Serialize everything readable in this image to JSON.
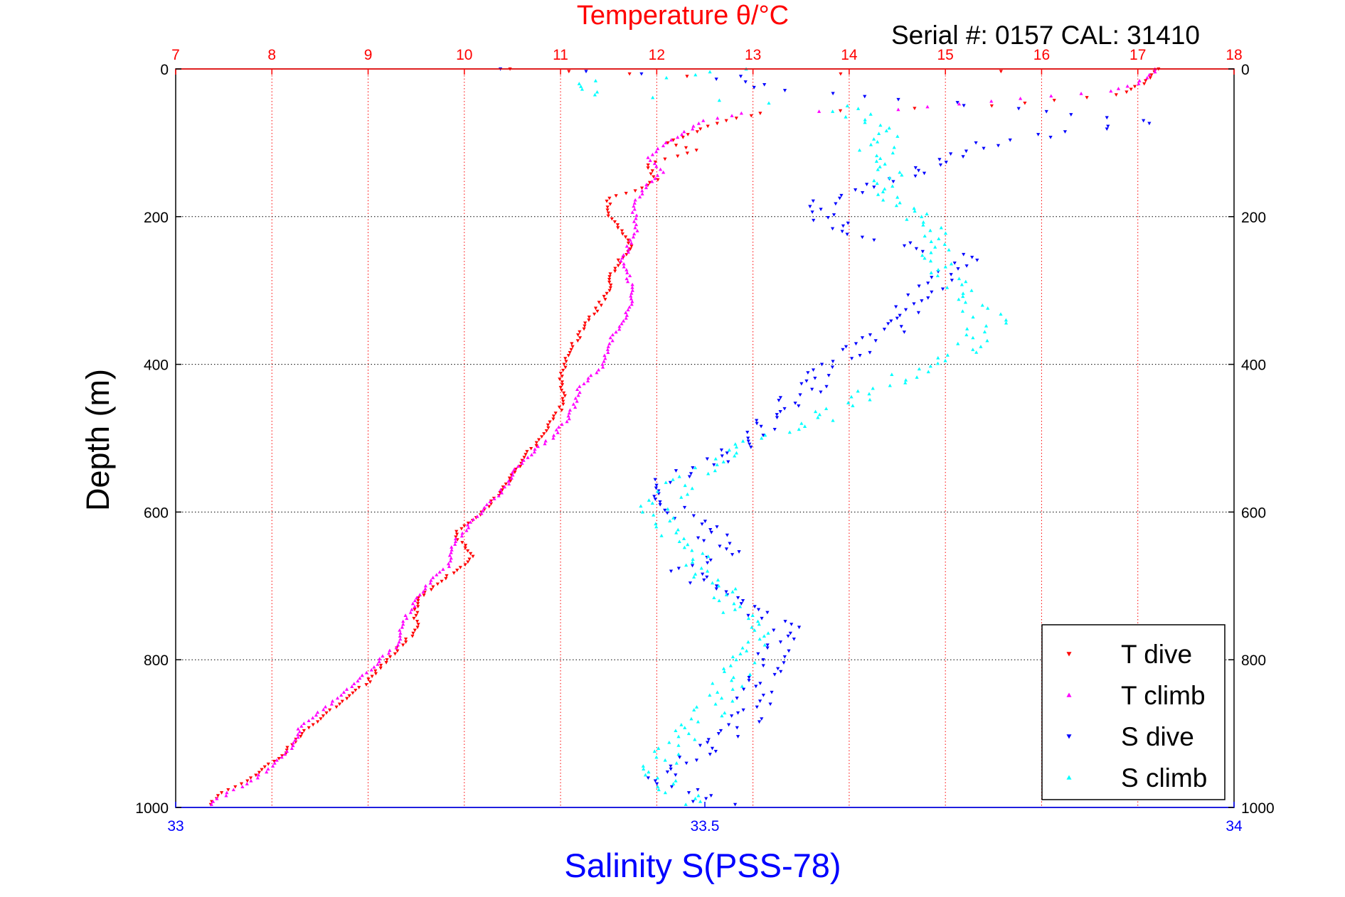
{
  "chart_data": {
    "type": "scatter",
    "title_top": "Temperature θ/°C",
    "serial_text": "Serial #: 0157  CAL: 31410",
    "ylabel": "Depth (m)",
    "xlabel_bottom": "Salinity S(PSS-78)",
    "temperature_axis": {
      "range": [
        7,
        18
      ],
      "ticks": [
        "7",
        "8",
        "9",
        "10",
        "11",
        "12",
        "13",
        "14",
        "15",
        "16",
        "17",
        "18"
      ]
    },
    "salinity_axis": {
      "range": [
        33,
        34
      ],
      "ticks": [
        "33",
        "33.5",
        "34"
      ]
    },
    "depth_axis": {
      "range": [
        0,
        1000
      ],
      "reversed": true,
      "ticks": [
        "0",
        "200",
        "400",
        "600",
        "800",
        "1000"
      ]
    },
    "grid": true,
    "legend_position": "bottom-right",
    "series": [
      {
        "name": "T dive",
        "axis": "temperature",
        "color": "#ff0000",
        "marker": "triangle-down",
        "points": [
          [
            10.5,
            0
          ],
          [
            12.3,
            10
          ],
          [
            17.2,
            0
          ],
          [
            17.05,
            20
          ],
          [
            16.8,
            35
          ],
          [
            15.5,
            50
          ],
          [
            13.1,
            60
          ],
          [
            12.7,
            70
          ],
          [
            12.4,
            85
          ],
          [
            12.1,
            100
          ],
          [
            12.4,
            110
          ],
          [
            11.9,
            130
          ],
          [
            12.0,
            150
          ],
          [
            11.8,
            165
          ],
          [
            11.5,
            175
          ],
          [
            11.5,
            195
          ],
          [
            11.6,
            215
          ],
          [
            11.75,
            240
          ],
          [
            11.55,
            270
          ],
          [
            11.5,
            300
          ],
          [
            11.3,
            340
          ],
          [
            11.1,
            380
          ],
          [
            11.0,
            420
          ],
          [
            11.05,
            450
          ],
          [
            10.85,
            490
          ],
          [
            10.6,
            530
          ],
          [
            10.4,
            570
          ],
          [
            10.2,
            600
          ],
          [
            9.9,
            630
          ],
          [
            10.1,
            660
          ],
          [
            9.8,
            690
          ],
          [
            9.5,
            720
          ],
          [
            9.5,
            760
          ],
          [
            9.2,
            800
          ],
          [
            9.0,
            830
          ],
          [
            8.7,
            860
          ],
          [
            8.5,
            880
          ],
          [
            8.3,
            900
          ],
          [
            8.1,
            930
          ],
          [
            7.8,
            960
          ],
          [
            7.5,
            980
          ],
          [
            7.3,
            1000
          ]
        ]
      },
      {
        "name": "T climb",
        "axis": "temperature",
        "color": "#ff00ff",
        "marker": "triangle-up",
        "points": [
          [
            17.2,
            0
          ],
          [
            17.0,
            20
          ],
          [
            16.7,
            30
          ],
          [
            15.8,
            40
          ],
          [
            14.5,
            55
          ],
          [
            12.9,
            60
          ],
          [
            12.5,
            70
          ],
          [
            12.3,
            85
          ],
          [
            12.1,
            100
          ],
          [
            11.9,
            120
          ],
          [
            12.05,
            140
          ],
          [
            11.85,
            165
          ],
          [
            11.75,
            190
          ],
          [
            11.8,
            215
          ],
          [
            11.7,
            240
          ],
          [
            11.65,
            260
          ],
          [
            11.75,
            300
          ],
          [
            11.7,
            330
          ],
          [
            11.55,
            360
          ],
          [
            11.45,
            400
          ],
          [
            11.2,
            430
          ],
          [
            11.1,
            470
          ],
          [
            10.9,
            500
          ],
          [
            10.6,
            530
          ],
          [
            10.4,
            570
          ],
          [
            10.1,
            610
          ],
          [
            9.9,
            640
          ],
          [
            9.85,
            670
          ],
          [
            9.6,
            700
          ],
          [
            9.4,
            740
          ],
          [
            9.3,
            780
          ],
          [
            9.05,
            810
          ],
          [
            8.8,
            840
          ],
          [
            8.6,
            860
          ],
          [
            8.3,
            890
          ],
          [
            8.2,
            920
          ],
          [
            7.85,
            960
          ],
          [
            7.55,
            980
          ],
          [
            7.3,
            1000
          ]
        ]
      },
      {
        "name": "S dive",
        "axis": "salinity",
        "color": "#0000ff",
        "marker": "triangle-down",
        "points": [
          [
            33.32,
            0
          ],
          [
            33.52,
            10
          ],
          [
            33.55,
            25
          ],
          [
            33.93,
            70
          ],
          [
            33.77,
            100
          ],
          [
            33.72,
            130
          ],
          [
            33.65,
            160
          ],
          [
            33.6,
            190
          ],
          [
            33.63,
            220
          ],
          [
            33.75,
            255
          ],
          [
            33.72,
            290
          ],
          [
            33.69,
            330
          ],
          [
            33.67,
            360
          ],
          [
            33.62,
            400
          ],
          [
            33.6,
            430
          ],
          [
            33.57,
            460
          ],
          [
            33.55,
            500
          ],
          [
            33.5,
            540
          ],
          [
            33.45,
            560
          ],
          [
            33.47,
            590
          ],
          [
            33.5,
            620
          ],
          [
            33.52,
            650
          ],
          [
            33.48,
            680
          ],
          [
            33.52,
            720
          ],
          [
            33.58,
            760
          ],
          [
            33.56,
            800
          ],
          [
            33.55,
            840
          ],
          [
            33.54,
            880
          ],
          [
            33.5,
            920
          ],
          [
            33.45,
            960
          ],
          [
            33.52,
            1000
          ]
        ]
      },
      {
        "name": "S climb",
        "axis": "salinity",
        "color": "#00ffff",
        "marker": "triangle-up",
        "points": [
          [
            33.55,
            0
          ],
          [
            33.38,
            20
          ],
          [
            33.4,
            35
          ],
          [
            33.62,
            50
          ],
          [
            33.68,
            80
          ],
          [
            33.66,
            110
          ],
          [
            33.67,
            140
          ],
          [
            33.68,
            170
          ],
          [
            33.7,
            200
          ],
          [
            33.72,
            230
          ],
          [
            33.72,
            260
          ],
          [
            33.74,
            300
          ],
          [
            33.77,
            340
          ],
          [
            33.75,
            380
          ],
          [
            33.7,
            410
          ],
          [
            33.65,
            440
          ],
          [
            33.6,
            480
          ],
          [
            33.52,
            520
          ],
          [
            33.48,
            560
          ],
          [
            33.45,
            600
          ],
          [
            33.48,
            640
          ],
          [
            33.5,
            680
          ],
          [
            33.52,
            720
          ],
          [
            33.55,
            760
          ],
          [
            33.54,
            800
          ],
          [
            33.52,
            840
          ],
          [
            33.5,
            880
          ],
          [
            33.47,
            920
          ],
          [
            33.45,
            960
          ],
          [
            33.5,
            1000
          ]
        ]
      }
    ]
  }
}
